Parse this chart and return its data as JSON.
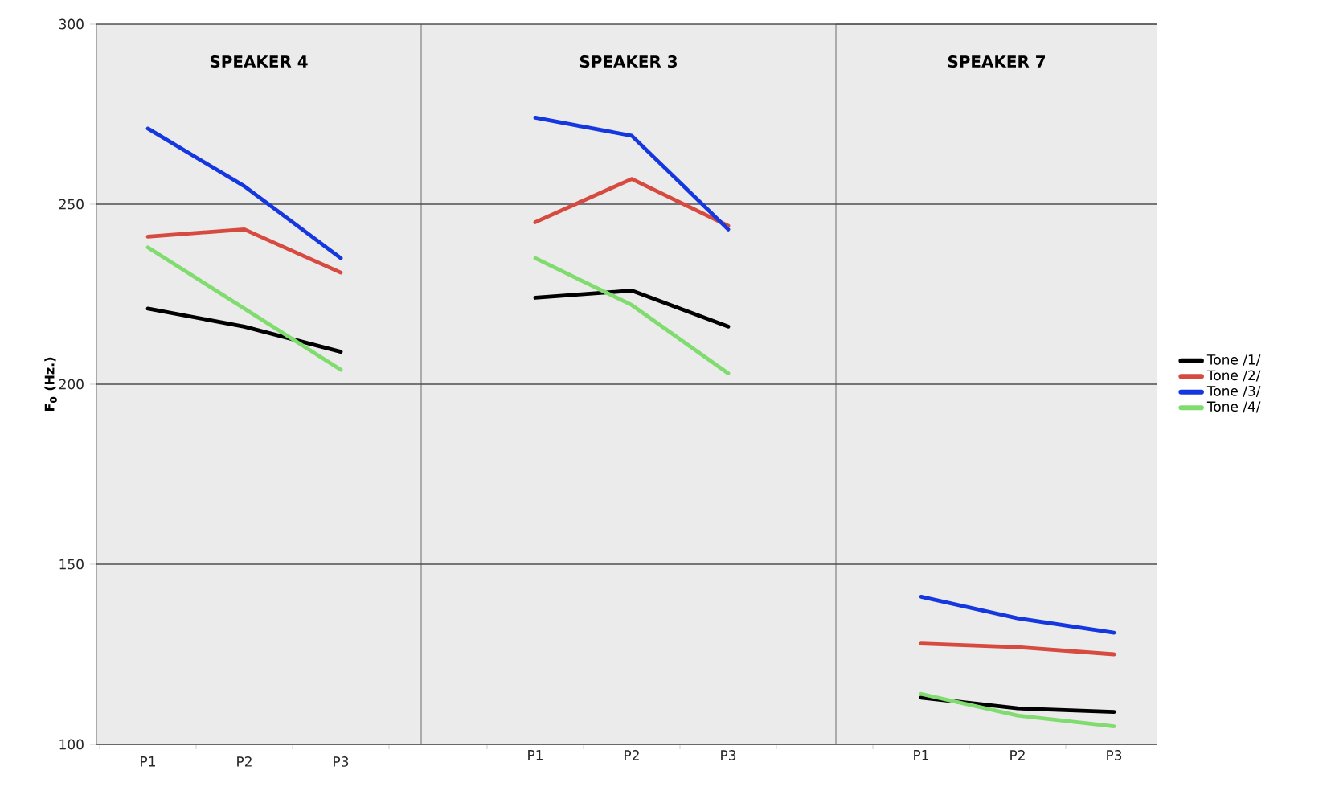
{
  "chart_data": [
    {
      "type": "line",
      "title": "SPEAKER 4",
      "ylabel": "F$_{0}$ (Hz.)",
      "categories": [
        "P1",
        "P2",
        "P3"
      ],
      "ylim": [
        100,
        300
      ],
      "yticks": [
        100,
        150,
        200,
        250,
        300
      ],
      "grid": "y",
      "legend": false,
      "series": [
        {
          "color": "#000000",
          "values": [
            221,
            216,
            209
          ]
        },
        {
          "color": "#d64a3f",
          "values": [
            241,
            243,
            231
          ]
        },
        {
          "color": "#1537e0",
          "values": [
            271,
            255,
            235
          ]
        },
        {
          "color": "#80dc6e",
          "values": [
            238,
            221,
            204
          ]
        }
      ]
    },
    {
      "type": "line",
      "title": "SPEAKER 3",
      "categories": [
        "P1",
        "P2",
        "P3"
      ],
      "ylim": [
        100,
        300
      ],
      "yticks": [
        100,
        150,
        200,
        250,
        300
      ],
      "grid": "y",
      "legend": false,
      "tick_labels": "x",
      "series": [
        {
          "color": "#000000",
          "values": [
            224,
            226,
            216
          ]
        },
        {
          "color": "#d64a3f",
          "values": [
            245,
            257,
            244
          ]
        },
        {
          "color": "#1537e0",
          "values": [
            274,
            269,
            243
          ]
        },
        {
          "color": "#80dc6e",
          "values": [
            235,
            222,
            203
          ]
        }
      ]
    },
    {
      "type": "line",
      "title": "SPEAKER 7",
      "categories": [
        "P1",
        "P2",
        "P3"
      ],
      "ylim": [
        100,
        300
      ],
      "yticks": [
        100,
        150,
        200,
        250,
        300
      ],
      "grid": "y",
      "legend": "right",
      "tick_labels": "x",
      "series": [
        {
          "name": "Tone /1/",
          "color": "#000000",
          "values": [
            113,
            110,
            109
          ]
        },
        {
          "name": "Tone /2/",
          "color": "#d64a3f",
          "values": [
            128,
            127,
            125
          ]
        },
        {
          "name": "Tone /3/",
          "color": "#1537e0",
          "values": [
            141,
            135,
            131
          ]
        },
        {
          "name": "Tone /4/",
          "color": "#80dc6e",
          "values": [
            114,
            108,
            105
          ]
        }
      ]
    }
  ]
}
